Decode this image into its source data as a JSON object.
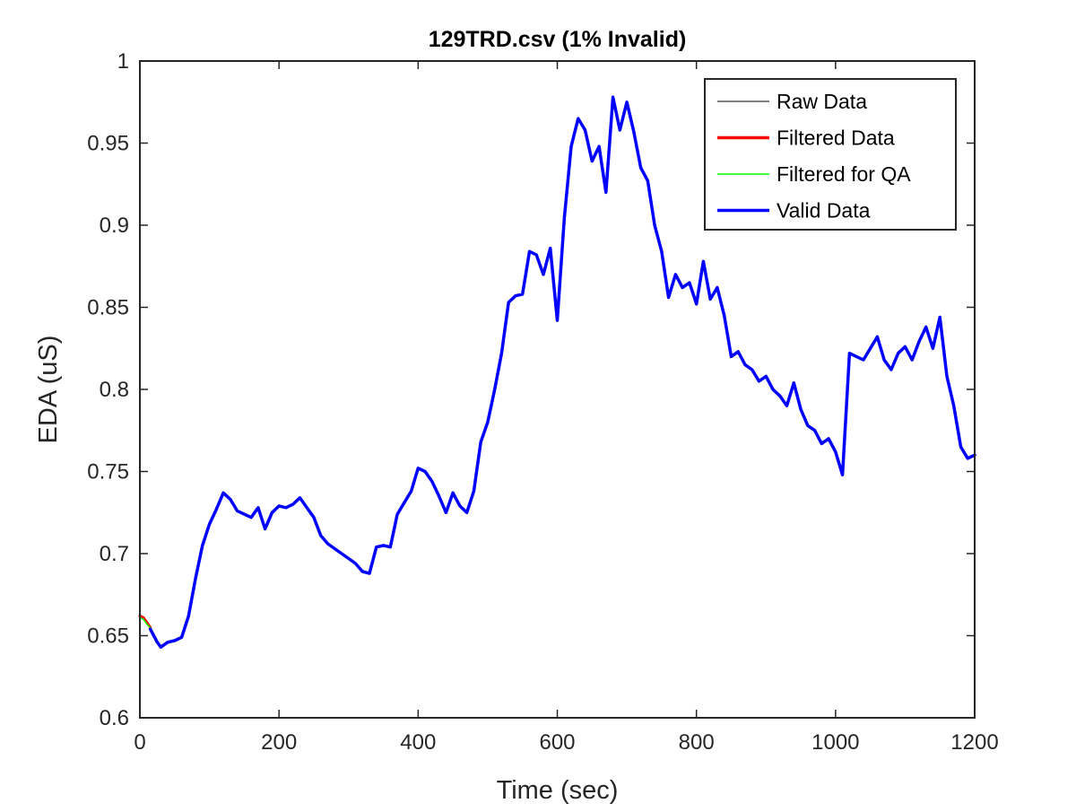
{
  "chart_data": {
    "type": "line",
    "title": "129TRD.csv (1% Invalid)",
    "xlabel": "Time (sec)",
    "ylabel": "EDA (uS)",
    "xlim": [
      0,
      1200
    ],
    "ylim": [
      0.6,
      1.0
    ],
    "xticks": [
      0,
      200,
      400,
      600,
      800,
      1000,
      1200
    ],
    "yticks": [
      0.6,
      0.65,
      0.7,
      0.75,
      0.8,
      0.85,
      0.9,
      0.95,
      1.0
    ],
    "xtick_labels": [
      "0",
      "200",
      "400",
      "600",
      "800",
      "1000",
      "1200"
    ],
    "ytick_labels": [
      "0.6",
      "0.65",
      "0.7",
      "0.75",
      "0.8",
      "0.85",
      "0.9",
      "0.95",
      "1"
    ],
    "grid": false,
    "legend_position": "top-right",
    "legend": [
      {
        "label": "Raw Data",
        "color": "#000000"
      },
      {
        "label": "Filtered Data",
        "color": "#ff0000"
      },
      {
        "label": "Filtered for QA",
        "color": "#00ff00"
      },
      {
        "label": "Valid Data",
        "color": "#0000ff"
      }
    ],
    "series": [
      {
        "name": "Raw Data",
        "color": "#000000",
        "x": [
          0,
          5,
          10,
          15,
          20,
          25,
          30,
          40,
          50,
          60,
          70,
          80,
          90,
          100,
          110,
          120,
          130,
          140,
          150,
          160,
          170,
          180,
          190,
          200,
          210,
          220,
          230,
          240,
          250,
          260,
          270,
          280,
          290,
          300,
          310,
          320,
          330,
          340,
          350,
          360,
          370,
          380,
          390,
          400,
          410,
          420,
          430,
          440,
          450,
          460,
          470,
          480,
          490,
          500,
          510,
          520,
          530,
          540,
          550,
          560,
          570,
          580,
          590,
          600,
          610,
          620,
          630,
          640,
          650,
          660,
          670,
          680,
          690,
          700,
          710,
          720,
          730,
          740,
          750,
          760,
          770,
          780,
          790,
          800,
          810,
          820,
          830,
          840,
          850,
          860,
          870,
          880,
          890,
          900,
          910,
          920,
          930,
          940,
          950,
          960,
          970,
          980,
          990,
          1000,
          1010,
          1020,
          1030,
          1040,
          1050,
          1060,
          1070,
          1080,
          1090,
          1100,
          1110,
          1120,
          1130,
          1140,
          1150,
          1160,
          1170,
          1180,
          1190,
          1200
        ],
        "y": [
          0.663,
          0.661,
          0.659,
          0.654,
          0.65,
          0.646,
          0.644,
          0.646,
          0.647,
          0.649,
          0.662,
          0.685,
          0.705,
          0.718,
          0.727,
          0.737,
          0.733,
          0.726,
          0.724,
          0.722,
          0.728,
          0.715,
          0.725,
          0.729,
          0.728,
          0.73,
          0.734,
          0.728,
          0.722,
          0.711,
          0.706,
          0.703,
          0.7,
          0.697,
          0.694,
          0.69,
          0.688,
          0.704,
          0.705,
          0.704,
          0.724,
          0.731,
          0.738,
          0.752,
          0.75,
          0.744,
          0.735,
          0.725,
          0.737,
          0.729,
          0.725,
          0.738,
          0.768,
          0.78,
          0.8,
          0.822,
          0.853,
          0.857,
          0.858,
          0.884,
          0.882,
          0.87,
          0.886,
          0.842,
          0.904,
          0.948,
          0.965,
          0.958,
          0.939,
          0.948,
          0.92,
          0.978,
          0.958,
          0.975,
          0.957,
          0.935,
          0.927,
          0.9,
          0.884,
          0.856,
          0.87,
          0.862,
          0.865,
          0.852,
          0.878,
          0.855,
          0.862,
          0.845,
          0.82,
          0.823,
          0.815,
          0.812,
          0.805,
          0.808,
          0.8,
          0.796,
          0.79,
          0.804,
          0.788,
          0.778,
          0.775,
          0.767,
          0.77,
          0.762,
          0.748,
          0.822,
          0.82,
          0.818,
          0.825,
          0.832,
          0.818,
          0.812,
          0.822,
          0.826,
          0.818,
          0.829,
          0.838,
          0.825,
          0.844,
          0.808,
          0.79,
          0.765,
          0.758,
          0.76
        ]
      },
      {
        "name": "Filtered Data",
        "color": "#ff0000",
        "x": [
          0,
          5,
          10,
          15
        ],
        "y": [
          0.662,
          0.661,
          0.658,
          0.655
        ]
      },
      {
        "name": "Filtered for QA",
        "color": "#00ff00",
        "x": [
          0,
          5,
          10,
          15
        ],
        "y": [
          0.661,
          0.66,
          0.657,
          0.655
        ]
      },
      {
        "name": "Valid Data",
        "color": "#0000ff",
        "x": [
          15,
          20,
          25,
          30,
          40,
          50,
          60,
          70,
          80,
          90,
          100,
          110,
          120,
          130,
          140,
          150,
          160,
          170,
          180,
          190,
          200,
          210,
          220,
          230,
          240,
          250,
          260,
          270,
          280,
          290,
          300,
          310,
          320,
          330,
          340,
          350,
          360,
          370,
          380,
          390,
          400,
          410,
          420,
          430,
          440,
          450,
          460,
          470,
          480,
          490,
          500,
          510,
          520,
          530,
          540,
          550,
          560,
          570,
          580,
          590,
          600,
          610,
          620,
          630,
          640,
          650,
          660,
          670,
          680,
          690,
          700,
          710,
          720,
          730,
          740,
          750,
          760,
          770,
          780,
          790,
          800,
          810,
          820,
          830,
          840,
          850,
          860,
          870,
          880,
          890,
          900,
          910,
          920,
          930,
          940,
          950,
          960,
          970,
          980,
          990,
          1000,
          1010,
          1020,
          1030,
          1040,
          1050,
          1060,
          1070,
          1080,
          1090,
          1100,
          1110,
          1120,
          1130,
          1140,
          1150,
          1160,
          1170,
          1180,
          1190,
          1200
        ],
        "y": [
          0.654,
          0.65,
          0.646,
          0.643,
          0.646,
          0.647,
          0.649,
          0.662,
          0.685,
          0.705,
          0.718,
          0.727,
          0.737,
          0.733,
          0.726,
          0.724,
          0.722,
          0.728,
          0.715,
          0.725,
          0.729,
          0.728,
          0.73,
          0.734,
          0.728,
          0.722,
          0.711,
          0.706,
          0.703,
          0.7,
          0.697,
          0.694,
          0.689,
          0.688,
          0.704,
          0.705,
          0.704,
          0.724,
          0.731,
          0.738,
          0.752,
          0.75,
          0.744,
          0.735,
          0.725,
          0.737,
          0.729,
          0.725,
          0.738,
          0.768,
          0.78,
          0.8,
          0.822,
          0.853,
          0.857,
          0.858,
          0.884,
          0.882,
          0.87,
          0.886,
          0.842,
          0.904,
          0.948,
          0.965,
          0.958,
          0.939,
          0.948,
          0.92,
          0.978,
          0.958,
          0.975,
          0.957,
          0.935,
          0.927,
          0.9,
          0.884,
          0.856,
          0.87,
          0.862,
          0.865,
          0.852,
          0.878,
          0.855,
          0.862,
          0.845,
          0.82,
          0.823,
          0.815,
          0.812,
          0.805,
          0.808,
          0.8,
          0.796,
          0.79,
          0.804,
          0.788,
          0.778,
          0.775,
          0.767,
          0.77,
          0.762,
          0.748,
          0.822,
          0.82,
          0.818,
          0.825,
          0.832,
          0.818,
          0.812,
          0.822,
          0.826,
          0.818,
          0.829,
          0.838,
          0.825,
          0.844,
          0.808,
          0.79,
          0.765,
          0.758,
          0.76
        ]
      }
    ]
  }
}
